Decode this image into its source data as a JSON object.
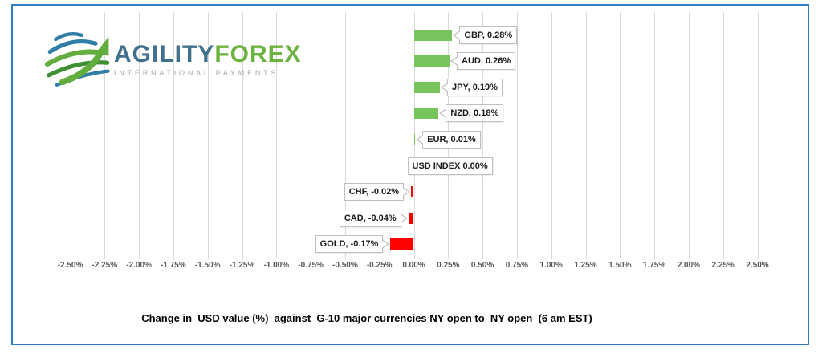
{
  "frame": {
    "border_color": "#2d80c4"
  },
  "logo": {
    "brand_primary": "AGILITY",
    "brand_secondary": "FOREX",
    "tagline": "INTERNATIONAL PAYMENTS"
  },
  "chart_data": {
    "type": "bar",
    "orientation": "horizontal",
    "categories": [
      "GBP",
      "AUD",
      "JPY",
      "NZD",
      "EUR",
      "USD INDEX",
      "CHF",
      "CAD",
      "GOLD"
    ],
    "values": [
      0.28,
      0.26,
      0.19,
      0.18,
      0.01,
      0.0,
      -0.02,
      -0.04,
      -0.17
    ],
    "data_labels": [
      "GBP, 0.28%",
      "AUD, 0.26%",
      "JPY, 0.19%",
      "NZD, 0.18%",
      "EUR, 0.01%",
      "USD INDEX 0.00%",
      "CHF, -0.02%",
      "CAD, -0.04%",
      "GOLD, -0.17%"
    ],
    "title": "Change in  USD value (%)  against  G-10 major currencies NY open to  NY open  (6 am EST)",
    "xlabel": "",
    "ylabel": "",
    "xlim": [
      -2.5,
      2.5
    ],
    "tick_step": 0.25,
    "tick_labels": [
      "-2.50%",
      "-2.25%",
      "-2.00%",
      "-1.75%",
      "-1.50%",
      "-1.25%",
      "-1.00%",
      "-0.75%",
      "-0.50%",
      "-0.25%",
      "0.00%",
      "0.25%",
      "0.50%",
      "0.75%",
      "1.00%",
      "1.25%",
      "1.50%",
      "1.75%",
      "2.00%",
      "2.25%",
      "2.50%"
    ],
    "grid": "vertical",
    "legend": "none",
    "positive_color": "#77c35c",
    "negative_color": "#ff0000",
    "gridline_color": "#d9d9d9"
  }
}
